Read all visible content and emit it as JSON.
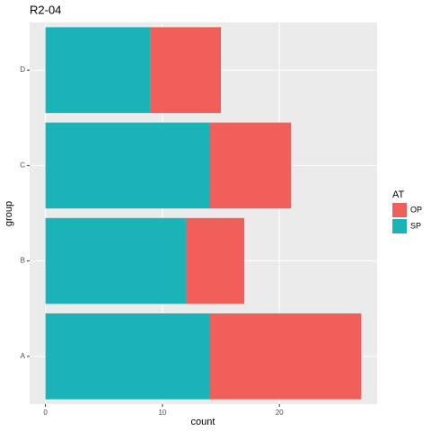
{
  "chart_data": {
    "type": "stacked_barh",
    "title": "R2-04",
    "x_label": "count",
    "y_label": "group",
    "legend_title": "AT",
    "categories": [
      "A",
      "B",
      "C",
      "D"
    ],
    "series": [
      {
        "name": "SP",
        "color": "#1ab3b8",
        "values": [
          14,
          12,
          14,
          9
        ]
      },
      {
        "name": "OP",
        "color": "#f15f5a",
        "values": [
          13,
          5,
          7,
          6
        ]
      }
    ],
    "xlim": [
      -1.35,
      28.35
    ],
    "xticks": [
      0,
      10,
      20
    ],
    "grid": true
  }
}
